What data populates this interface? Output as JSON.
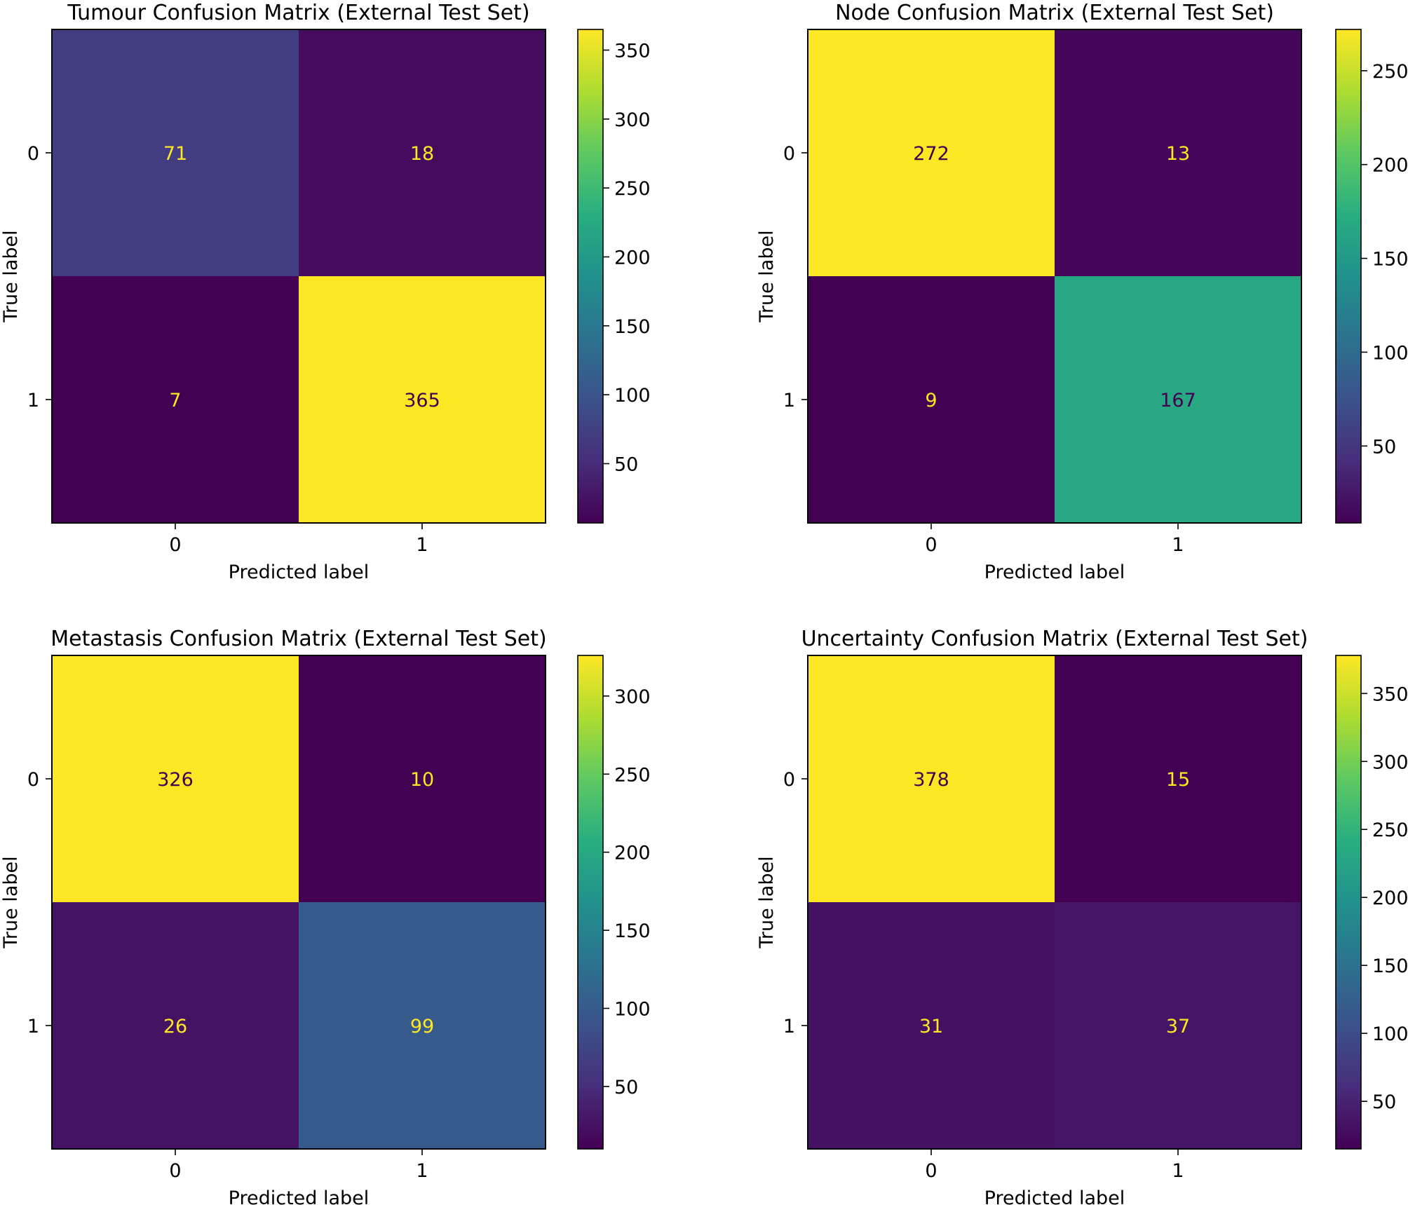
{
  "chart_data": [
    {
      "type": "heatmap",
      "title": "Tumour Confusion Matrix (External Test Set)",
      "xlabel": "Predicted label",
      "ylabel": "True label",
      "x_ticks": [
        "0",
        "1"
      ],
      "y_ticks": [
        "0",
        "1"
      ],
      "matrix": [
        [
          71,
          18
        ],
        [
          7,
          365
        ]
      ],
      "colormap": "viridis",
      "clim": [
        7,
        365
      ],
      "colorbar_ticks": [
        50,
        100,
        150,
        200,
        250,
        300,
        350
      ]
    },
    {
      "type": "heatmap",
      "title": "Node Confusion Matrix (External Test Set)",
      "xlabel": "Predicted label",
      "ylabel": "True label",
      "x_ticks": [
        "0",
        "1"
      ],
      "y_ticks": [
        "0",
        "1"
      ],
      "matrix": [
        [
          272,
          13
        ],
        [
          9,
          167
        ]
      ],
      "colormap": "viridis",
      "clim": [
        9,
        272
      ],
      "colorbar_ticks": [
        50,
        100,
        150,
        200,
        250
      ]
    },
    {
      "type": "heatmap",
      "title": "Metastasis Confusion Matrix (External Test Set)",
      "xlabel": "Predicted label",
      "ylabel": "True label",
      "x_ticks": [
        "0",
        "1"
      ],
      "y_ticks": [
        "0",
        "1"
      ],
      "matrix": [
        [
          326,
          10
        ],
        [
          26,
          99
        ]
      ],
      "colormap": "viridis",
      "clim": [
        10,
        326
      ],
      "colorbar_ticks": [
        50,
        100,
        150,
        200,
        250,
        300
      ]
    },
    {
      "type": "heatmap",
      "title": "Uncertainty Confusion Matrix (External Test Set)",
      "xlabel": "Predicted label",
      "ylabel": "True label",
      "x_ticks": [
        "0",
        "1"
      ],
      "y_ticks": [
        "0",
        "1"
      ],
      "matrix": [
        [
          378,
          15
        ],
        [
          31,
          37
        ]
      ],
      "colormap": "viridis",
      "clim": [
        15,
        378
      ],
      "colorbar_ticks": [
        50,
        100,
        150,
        200,
        250,
        300,
        350
      ]
    }
  ]
}
